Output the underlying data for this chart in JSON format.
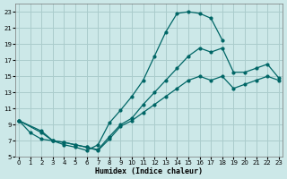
{
  "xlabel": "Humidex (Indice chaleur)",
  "bg_color": "#cce8e8",
  "grid_color": "#aacccc",
  "line_color": "#006666",
  "xlim": [
    -0.3,
    23.3
  ],
  "ylim": [
    5,
    24
  ],
  "xticks": [
    0,
    1,
    2,
    3,
    4,
    5,
    6,
    7,
    8,
    9,
    10,
    11,
    12,
    13,
    14,
    15,
    16,
    17,
    18,
    19,
    20,
    21,
    22,
    23
  ],
  "yticks": [
    5,
    7,
    9,
    11,
    13,
    15,
    17,
    19,
    21,
    23
  ],
  "curve1_x": [
    0,
    1,
    2,
    3,
    4,
    5,
    6,
    7,
    8,
    9,
    10,
    11,
    12,
    13,
    14,
    15,
    16,
    17,
    18
  ],
  "curve1_y": [
    9.5,
    8.0,
    7.2,
    7.0,
    6.5,
    6.2,
    5.8,
    6.5,
    9.2,
    10.8,
    12.5,
    14.5,
    17.5,
    20.5,
    22.8,
    23.0,
    22.8,
    22.2,
    19.5
  ],
  "curve2_x": [
    0,
    2,
    3,
    4,
    5,
    6,
    7,
    8,
    9,
    10,
    11,
    12,
    13,
    14,
    15,
    16,
    17,
    18,
    19,
    20,
    21,
    22,
    23
  ],
  "curve2_y": [
    9.5,
    8.2,
    7.0,
    6.8,
    6.5,
    6.2,
    5.9,
    7.5,
    9.0,
    9.8,
    11.5,
    13.0,
    14.5,
    16.0,
    17.5,
    18.5,
    18.0,
    18.5,
    15.5,
    15.5,
    16.0,
    16.5,
    14.8
  ],
  "curve3_x": [
    0,
    2,
    3,
    4,
    5,
    6,
    7,
    8,
    9,
    10,
    11,
    12,
    13,
    14,
    15,
    16,
    17,
    18,
    19,
    20,
    21,
    22,
    23
  ],
  "curve3_y": [
    9.5,
    8.0,
    7.0,
    6.8,
    6.5,
    6.2,
    5.8,
    7.2,
    8.8,
    9.5,
    10.5,
    11.5,
    12.5,
    13.5,
    14.5,
    15.0,
    14.5,
    15.0,
    13.5,
    14.0,
    14.5,
    15.0,
    14.5
  ]
}
